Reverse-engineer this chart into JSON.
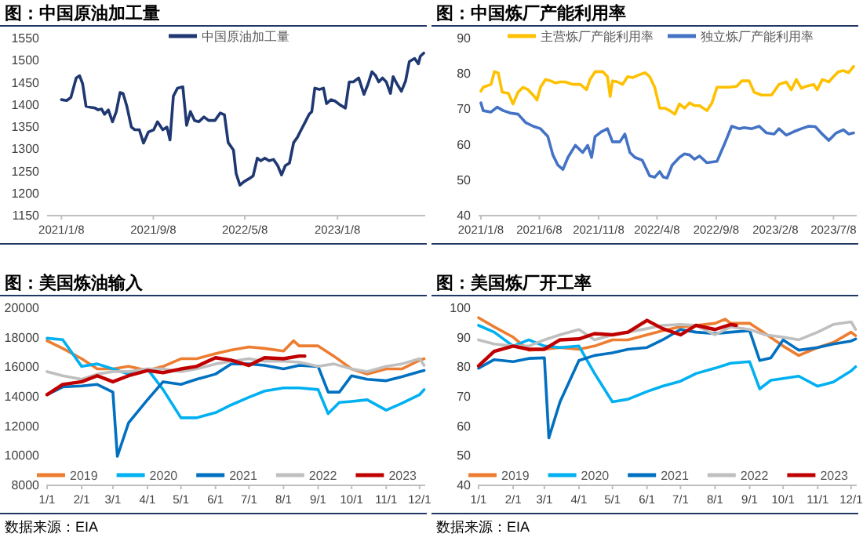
{
  "chart_data": [
    {
      "type": "line",
      "title": "图：中国原油加工量",
      "legend": "top",
      "xlim": [
        "2020-12-01",
        "2023-08-28"
      ],
      "ylim": [
        1150,
        1550
      ],
      "yticks": [
        1150,
        1200,
        1250,
        1300,
        1350,
        1400,
        1450,
        1500,
        1550
      ],
      "xticks": [
        {
          "value": "2021-01-08",
          "label": "2021/1/8"
        },
        {
          "value": "2021-09-08",
          "label": "2021/9/8"
        },
        {
          "value": "2022-05-08",
          "label": "2022/5/8"
        },
        {
          "value": "2023-01-08",
          "label": "2023/1/8"
        }
      ],
      "series": [
        {
          "name": "中国原油加工量",
          "color": "#1f3872",
          "x": [
            "2021-01-08",
            "2021-01-22",
            "2021-02-02",
            "2021-02-16",
            "2021-02-25",
            "2021-03-05",
            "2021-03-14",
            "2021-03-25",
            "2021-04-07",
            "2021-04-15",
            "2021-04-24",
            "2021-05-02",
            "2021-05-12",
            "2021-05-23",
            "2021-06-02",
            "2021-06-12",
            "2021-06-20",
            "2021-06-30",
            "2021-07-12",
            "2021-07-21",
            "2021-08-02",
            "2021-08-13",
            "2021-08-26",
            "2021-09-09",
            "2021-09-19",
            "2021-10-03",
            "2021-10-14",
            "2021-10-22",
            "2021-10-31",
            "2021-11-11",
            "2021-11-25",
            "2021-12-05",
            "2021-12-15",
            "2021-12-26",
            "2022-01-06",
            "2022-01-20",
            "2022-02-01",
            "2022-02-18",
            "2022-03-04",
            "2022-03-15",
            "2022-03-25",
            "2022-04-08",
            "2022-04-15",
            "2022-04-25",
            "2022-05-06",
            "2022-05-20",
            "2022-05-30",
            "2022-06-10",
            "2022-06-19",
            "2022-06-30",
            "2022-07-11",
            "2022-07-23",
            "2022-08-03",
            "2022-08-13",
            "2022-08-23",
            "2022-09-03",
            "2022-09-14",
            "2022-09-24",
            "2022-10-04",
            "2022-10-15",
            "2022-10-25",
            "2022-11-01",
            "2022-11-09",
            "2022-11-21",
            "2022-12-02",
            "2022-12-10",
            "2022-12-22",
            "2023-01-01",
            "2023-01-15",
            "2023-01-29",
            "2023-02-08",
            "2023-02-19",
            "2023-03-05",
            "2023-03-19",
            "2023-03-30",
            "2023-04-09",
            "2023-04-19",
            "2023-04-27",
            "2023-05-07",
            "2023-05-17",
            "2023-05-28",
            "2023-06-04",
            "2023-06-14",
            "2023-06-26",
            "2023-07-07",
            "2023-07-17",
            "2023-07-31",
            "2023-08-10",
            "2023-08-15",
            "2023-08-24"
          ],
          "values": [
            1410,
            1408,
            1415,
            1459,
            1464,
            1446,
            1395,
            1393,
            1391,
            1387,
            1389,
            1377,
            1387,
            1360,
            1383,
            1426,
            1424,
            1395,
            1348,
            1342,
            1342,
            1312,
            1337,
            1342,
            1360,
            1342,
            1348,
            1319,
            1418,
            1436,
            1439,
            1352,
            1383,
            1363,
            1360,
            1371,
            1363,
            1363,
            1380,
            1376,
            1313,
            1296,
            1243,
            1217,
            1225,
            1232,
            1238,
            1278,
            1272,
            1278,
            1272,
            1275,
            1261,
            1240,
            1261,
            1267,
            1313,
            1325,
            1342,
            1360,
            1377,
            1383,
            1436,
            1433,
            1436,
            1401,
            1410,
            1407,
            1398,
            1391,
            1450,
            1450,
            1459,
            1422,
            1446,
            1473,
            1464,
            1450,
            1459,
            1450,
            1424,
            1462,
            1446,
            1429,
            1452,
            1496,
            1503,
            1491,
            1508,
            1515
          ]
        }
      ]
    },
    {
      "type": "line",
      "title": "图：中国炼厂产能利用率",
      "legend": "top",
      "xlim": [
        "2021-01-02",
        "2023-09-06"
      ],
      "ylim": [
        40,
        90
      ],
      "yticks": [
        40,
        50,
        60,
        70,
        80,
        90
      ],
      "xticks": [
        {
          "value": "2021-01-08",
          "label": "2021/1/8"
        },
        {
          "value": "2021-06-08",
          "label": "2021/6/8"
        },
        {
          "value": "2021-11-08",
          "label": "2021/11/8"
        },
        {
          "value": "2022-04-08",
          "label": "2022/4/8"
        },
        {
          "value": "2022-09-08",
          "label": "2022/9/8"
        },
        {
          "value": "2023-02-08",
          "label": "2023/2/8"
        },
        {
          "value": "2023-07-08",
          "label": "2023/7/8"
        }
      ],
      "series": [
        {
          "name": "主营炼厂产能利用率",
          "color": "#ffc000",
          "x": [
            "2021-01-08",
            "2021-01-14",
            "2021-02-03",
            "2021-02-12",
            "2021-02-22",
            "2021-03-04",
            "2021-03-20",
            "2021-04-01",
            "2021-04-14",
            "2021-04-27",
            "2021-05-10",
            "2021-05-23",
            "2021-06-02",
            "2021-06-11",
            "2021-06-24",
            "2021-07-07",
            "2021-07-20",
            "2021-08-01",
            "2021-08-14",
            "2021-09-02",
            "2021-09-22",
            "2021-10-08",
            "2021-10-17",
            "2021-10-30",
            "2021-11-19",
            "2021-12-01",
            "2021-12-08",
            "2021-12-14",
            "2021-12-27",
            "2022-01-09",
            "2022-01-22",
            "2022-02-04",
            "2022-02-16",
            "2022-03-08",
            "2022-03-20",
            "2022-04-02",
            "2022-04-15",
            "2022-04-28",
            "2022-05-11",
            "2022-05-24",
            "2022-06-05",
            "2022-06-18",
            "2022-07-01",
            "2022-07-14",
            "2022-07-27",
            "2022-08-15",
            "2022-08-28",
            "2022-09-10",
            "2022-09-23",
            "2022-10-12",
            "2022-10-31",
            "2022-11-13",
            "2022-12-02",
            "2022-12-15",
            "2023-01-03",
            "2023-01-29",
            "2023-02-17",
            "2023-03-08",
            "2023-03-21",
            "2023-04-03",
            "2023-04-16",
            "2023-04-29",
            "2023-05-18",
            "2023-05-27",
            "2023-06-09",
            "2023-06-26",
            "2023-07-08",
            "2023-07-21",
            "2023-08-03",
            "2023-08-16",
            "2023-08-29"
          ],
          "values": [
            74.9,
            76.0,
            76.8,
            80.4,
            80.0,
            74.6,
            74.3,
            71.3,
            74.6,
            76.0,
            75.3,
            73.8,
            72.4,
            76.0,
            78.2,
            77.8,
            77.2,
            77.5,
            77.5,
            76.8,
            76.8,
            75.3,
            78.2,
            80.4,
            80.4,
            79.0,
            73.4,
            77.8,
            77.5,
            76.8,
            79.0,
            78.7,
            79.3,
            80.1,
            79.0,
            76.0,
            70.1,
            70.1,
            69.4,
            68.4,
            71.3,
            70.1,
            71.6,
            70.8,
            70.8,
            69.4,
            71.6,
            76.0,
            76.0,
            76.0,
            76.3,
            77.8,
            77.8,
            74.6,
            73.8,
            73.8,
            76.8,
            77.5,
            75.3,
            78.2,
            75.7,
            76.3,
            76.8,
            75.3,
            78.2,
            77.5,
            79.0,
            80.4,
            80.7,
            80.1,
            81.9
          ]
        },
        {
          "name": "独立炼厂产能利用率",
          "color": "#4472c4",
          "x": [
            "2021-01-08",
            "2021-01-14",
            "2021-02-03",
            "2021-02-19",
            "2021-03-07",
            "2021-03-26",
            "2021-04-14",
            "2021-05-04",
            "2021-05-23",
            "2021-06-11",
            "2021-06-30",
            "2021-07-13",
            "2021-07-26",
            "2021-08-08",
            "2021-08-21",
            "2021-09-09",
            "2021-09-28",
            "2021-10-11",
            "2021-10-21",
            "2021-10-30",
            "2021-11-16",
            "2021-12-01",
            "2021-12-14",
            "2022-01-02",
            "2022-01-15",
            "2022-01-28",
            "2022-02-10",
            "2022-03-01",
            "2022-03-20",
            "2022-04-02",
            "2022-04-15",
            "2022-04-24",
            "2022-05-04",
            "2022-05-17",
            "2022-06-05",
            "2022-06-18",
            "2022-07-01",
            "2022-07-14",
            "2022-07-27",
            "2022-08-15",
            "2022-09-10",
            "2022-09-29",
            "2022-10-18",
            "2022-11-06",
            "2022-11-19",
            "2022-12-09",
            "2022-12-28",
            "2023-01-16",
            "2023-02-05",
            "2023-02-17",
            "2023-03-08",
            "2023-03-28",
            "2023-04-16",
            "2023-05-05",
            "2023-05-22",
            "2023-06-06",
            "2023-06-26",
            "2023-07-15",
            "2023-08-03",
            "2023-08-16",
            "2023-08-29"
          ],
          "values": [
            71.6,
            69.4,
            69.0,
            70.4,
            69.4,
            68.7,
            68.4,
            66.0,
            65.0,
            64.3,
            62.1,
            56.9,
            54.0,
            52.8,
            56.2,
            59.6,
            57.6,
            59.6,
            56.2,
            62.1,
            63.5,
            64.3,
            60.6,
            60.6,
            62.8,
            57.6,
            56.2,
            55.4,
            51.0,
            50.6,
            52.2,
            50.7,
            50.4,
            54.0,
            56.2,
            57.2,
            56.9,
            55.7,
            56.6,
            54.7,
            55.1,
            59.9,
            65.0,
            64.3,
            64.6,
            64.3,
            65.0,
            63.1,
            62.8,
            64.3,
            62.5,
            63.5,
            64.3,
            65.0,
            64.9,
            63.1,
            61.0,
            63.1,
            64.0,
            62.8,
            63.1
          ]
        }
      ]
    },
    {
      "type": "line",
      "title": "图：美国炼油输入",
      "legend": "bottom",
      "xlim": [
        "--01-01",
        "--12-06"
      ],
      "ylim": [
        8000,
        20000
      ],
      "yticks": [
        8000,
        10000,
        12000,
        14000,
        16000,
        18000,
        20000
      ],
      "xticks": [
        {
          "value": "--01-01",
          "label": "1/1"
        },
        {
          "value": "--02-01",
          "label": "2/1"
        },
        {
          "value": "--03-01",
          "label": "3/1"
        },
        {
          "value": "--04-01",
          "label": "4/1"
        },
        {
          "value": "--05-01",
          "label": "5/1"
        },
        {
          "value": "--06-01",
          "label": "6/1"
        },
        {
          "value": "--07-01",
          "label": "7/1"
        },
        {
          "value": "--08-01",
          "label": "8/1"
        },
        {
          "value": "--09-01",
          "label": "9/1"
        },
        {
          "value": "--10-01",
          "label": "10/1"
        },
        {
          "value": "--11-01",
          "label": "11/1"
        },
        {
          "value": "--12-01",
          "label": "12/1"
        }
      ],
      "annotations": [
        "数据来源：EIA"
      ],
      "series": [
        {
          "name": "2019",
          "color": "#ed7d31",
          "x": [
            "--01-01",
            "--01-15",
            "--02-01",
            "--02-15",
            "--03-01",
            "--03-15",
            "--04-01",
            "--04-15",
            "--05-01",
            "--05-15",
            "--06-01",
            "--06-15",
            "--07-01",
            "--07-15",
            "--08-01",
            "--08-10",
            "--08-15",
            "--09-01",
            "--09-15",
            "--10-01",
            "--10-15",
            "--11-01",
            "--11-15",
            "--12-01",
            "--12-05"
          ],
          "values": [
            17740,
            17220,
            16520,
            15830,
            15830,
            16000,
            15720,
            16000,
            16520,
            16520,
            16870,
            17110,
            17320,
            17220,
            17040,
            17740,
            17390,
            17390,
            16700,
            15830,
            15480,
            15830,
            15830,
            16420,
            16520
          ]
        },
        {
          "name": "2020",
          "color": "#00b0f0",
          "x": [
            "--01-01",
            "--01-15",
            "--02-01",
            "--02-15",
            "--03-01",
            "--03-15",
            "--04-01",
            "--04-15",
            "--05-01",
            "--05-15",
            "--06-01",
            "--06-15",
            "--07-01",
            "--07-15",
            "--08-01",
            "--08-15",
            "--09-01",
            "--09-10",
            "--09-20",
            "--10-01",
            "--10-15",
            "--11-01",
            "--11-15",
            "--12-01",
            "--12-05"
          ],
          "values": [
            17910,
            17810,
            16000,
            16170,
            15830,
            15480,
            15830,
            14430,
            12520,
            12520,
            12870,
            13390,
            13910,
            14330,
            14540,
            14540,
            14430,
            12800,
            13560,
            13630,
            13740,
            13040,
            13500,
            14090,
            14430
          ]
        },
        {
          "name": "2021",
          "color": "#0070c0",
          "x": [
            "--01-01",
            "--01-15",
            "--02-01",
            "--02-15",
            "--03-01",
            "--03-05",
            "--03-15",
            "--04-01",
            "--04-15",
            "--05-01",
            "--05-15",
            "--06-01",
            "--06-15",
            "--07-01",
            "--07-15",
            "--08-01",
            "--08-15",
            "--09-01",
            "--09-10",
            "--09-20",
            "--10-01",
            "--10-15",
            "--11-01",
            "--11-15",
            "--12-01",
            "--12-05"
          ],
          "values": [
            14090,
            14610,
            14680,
            14780,
            14260,
            9910,
            12170,
            13740,
            14960,
            14780,
            15130,
            15480,
            16170,
            16170,
            16070,
            15830,
            16070,
            16000,
            14260,
            14260,
            15370,
            15130,
            15030,
            15300,
            15650,
            15720
          ]
        },
        {
          "name": "2022",
          "color": "#bfbfbf",
          "x": [
            "--01-01",
            "--01-15",
            "--02-01",
            "--02-15",
            "--03-01",
            "--03-15",
            "--04-01",
            "--04-15",
            "--05-01",
            "--05-15",
            "--06-01",
            "--06-15",
            "--07-01",
            "--07-15",
            "--08-01",
            "--08-15",
            "--09-01",
            "--09-15",
            "--10-01",
            "--10-15",
            "--11-01",
            "--11-15",
            "--12-01",
            "--12-05"
          ],
          "values": [
            15650,
            15370,
            15130,
            15480,
            15650,
            15650,
            15830,
            15830,
            15650,
            15830,
            16170,
            16350,
            16520,
            16350,
            16350,
            16280,
            16000,
            16170,
            15830,
            15650,
            16000,
            16170,
            16520,
            16070
          ]
        },
        {
          "name": "2023",
          "color": "#c00000",
          "x": [
            "--01-01",
            "--01-15",
            "--02-01",
            "--02-15",
            "--03-01",
            "--03-15",
            "--04-01",
            "--04-15",
            "--05-01",
            "--05-15",
            "--06-01",
            "--06-15",
            "--07-01",
            "--07-15",
            "--08-01",
            "--08-15",
            "--08-20"
          ],
          "values": [
            14090,
            14780,
            14960,
            15370,
            14960,
            15370,
            15720,
            15580,
            15830,
            16000,
            16590,
            16420,
            16070,
            16590,
            16520,
            16700,
            16700
          ]
        }
      ]
    },
    {
      "type": "line",
      "title": "图：美国炼厂开工率",
      "legend": "bottom",
      "xlim": [
        "--01-01",
        "--12-06"
      ],
      "ylim": [
        40,
        100
      ],
      "yticks": [
        40,
        50,
        60,
        70,
        80,
        90,
        100
      ],
      "xticks": [
        {
          "value": "--01-01",
          "label": "1/1"
        },
        {
          "value": "--02-01",
          "label": "2/1"
        },
        {
          "value": "--03-01",
          "label": "3/1"
        },
        {
          "value": "--04-01",
          "label": "4/1"
        },
        {
          "value": "--05-01",
          "label": "5/1"
        },
        {
          "value": "--06-01",
          "label": "6/1"
        },
        {
          "value": "--07-01",
          "label": "7/1"
        },
        {
          "value": "--08-01",
          "label": "8/1"
        },
        {
          "value": "--09-01",
          "label": "9/1"
        },
        {
          "value": "--10-01",
          "label": "10/1"
        },
        {
          "value": "--11-01",
          "label": "11/1"
        },
        {
          "value": "--12-01",
          "label": "12/1"
        }
      ],
      "annotations": [
        "数据来源：EIA"
      ],
      "series": [
        {
          "name": "2019",
          "color": "#ed7d31",
          "x": [
            "--01-01",
            "--01-15",
            "--02-01",
            "--02-15",
            "--03-01",
            "--03-15",
            "--04-01",
            "--04-15",
            "--05-01",
            "--05-15",
            "--06-01",
            "--06-15",
            "--07-01",
            "--07-15",
            "--08-01",
            "--08-10",
            "--08-15",
            "--09-01",
            "--09-15",
            "--10-01",
            "--10-15",
            "--11-01",
            "--11-15",
            "--12-01",
            "--12-05"
          ],
          "values": [
            96.5,
            93.4,
            89.9,
            85.5,
            85.8,
            86.4,
            85.8,
            86.9,
            89.0,
            89.0,
            90.7,
            92.1,
            93.4,
            93.9,
            94.6,
            96.0,
            94.6,
            94.6,
            91.1,
            86.9,
            83.7,
            86.4,
            88.1,
            91.6,
            90.4
          ]
        },
        {
          "name": "2020",
          "color": "#00b0f0",
          "x": [
            "--01-01",
            "--01-15",
            "--02-01",
            "--02-15",
            "--03-01",
            "--03-15",
            "--04-01",
            "--04-15",
            "--05-01",
            "--05-15",
            "--06-01",
            "--06-15",
            "--07-01",
            "--07-15",
            "--08-01",
            "--08-15",
            "--09-01",
            "--09-10",
            "--09-20",
            "--10-01",
            "--10-15",
            "--11-01",
            "--11-15",
            "--12-01",
            "--12-05"
          ],
          "values": [
            93.9,
            91.6,
            86.9,
            89.0,
            86.9,
            86.4,
            86.9,
            77.6,
            68.0,
            68.9,
            71.5,
            73.3,
            75.0,
            77.6,
            79.4,
            81.1,
            81.6,
            72.4,
            75.3,
            75.9,
            76.7,
            73.3,
            74.7,
            78.5,
            79.9
          ]
        },
        {
          "name": "2021",
          "color": "#0070c0",
          "x": [
            "--01-01",
            "--01-15",
            "--02-01",
            "--02-15",
            "--03-01",
            "--03-05",
            "--03-15",
            "--04-01",
            "--04-15",
            "--05-01",
            "--05-15",
            "--06-01",
            "--06-15",
            "--07-01",
            "--07-15",
            "--08-01",
            "--08-15",
            "--09-01",
            "--09-10",
            "--09-20",
            "--10-01",
            "--10-15",
            "--11-01",
            "--11-15",
            "--12-01",
            "--12-05"
          ],
          "values": [
            79.4,
            82.3,
            81.6,
            82.7,
            82.9,
            55.8,
            68.0,
            82.0,
            83.7,
            84.6,
            85.8,
            86.4,
            89.0,
            92.5,
            91.6,
            91.1,
            91.6,
            92.1,
            82.0,
            82.9,
            89.0,
            85.5,
            86.4,
            87.6,
            88.6,
            89.3
          ]
        },
        {
          "name": "2022",
          "color": "#bfbfbf",
          "x": [
            "--01-01",
            "--01-15",
            "--02-01",
            "--02-15",
            "--03-01",
            "--03-15",
            "--04-01",
            "--04-15",
            "--05-01",
            "--05-15",
            "--06-01",
            "--06-15",
            "--07-01",
            "--07-15",
            "--08-01",
            "--08-15",
            "--09-01",
            "--09-15",
            "--10-01",
            "--10-15",
            "--11-01",
            "--11-15",
            "--12-01",
            "--12-05"
          ],
          "values": [
            89.0,
            87.6,
            86.9,
            86.9,
            89.0,
            90.7,
            92.5,
            89.0,
            90.7,
            91.6,
            92.8,
            93.9,
            94.2,
            93.9,
            90.7,
            93.4,
            92.5,
            90.7,
            89.9,
            89.0,
            91.6,
            94.2,
            95.1,
            92.5
          ]
        },
        {
          "name": "2023",
          "color": "#c00000",
          "x": [
            "--01-01",
            "--01-15",
            "--02-01",
            "--02-15",
            "--03-01",
            "--03-15",
            "--04-01",
            "--04-15",
            "--05-01",
            "--05-15",
            "--06-01",
            "--06-15",
            "--07-01",
            "--07-15",
            "--08-01",
            "--08-15",
            "--08-20"
          ],
          "values": [
            80.2,
            85.1,
            86.9,
            85.8,
            85.8,
            89.0,
            89.3,
            91.1,
            90.7,
            91.6,
            95.6,
            92.8,
            90.7,
            93.9,
            92.5,
            94.2,
            93.9
          ]
        }
      ]
    }
  ]
}
